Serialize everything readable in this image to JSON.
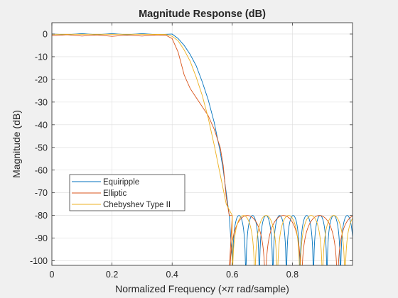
{
  "chart_data": {
    "type": "line",
    "title": "Magnitude Response (dB)",
    "xlabel_prefix": "Normalized Frequency (",
    "xlabel_pi": "×π",
    "xlabel_suffix": " rad/sample)",
    "ylabel": "Magnitude (dB)",
    "xlim": [
      0,
      1
    ],
    "ylim": [
      -102,
      5
    ],
    "xticks": [
      0,
      0.2,
      0.4,
      0.6,
      0.8
    ],
    "xtick_labels": [
      "0",
      "0.2",
      "0.4",
      "0.6",
      "0.8"
    ],
    "yticks": [
      0,
      -10,
      -20,
      -30,
      -40,
      -50,
      -60,
      -70,
      -80,
      -90,
      -100
    ],
    "ytick_labels": [
      "0",
      "-10",
      "-20",
      "-30",
      "-40",
      "-50",
      "-60",
      "-70",
      "-80",
      "-90",
      "-100"
    ],
    "grid": true,
    "legend_position": "lower-left",
    "series": [
      {
        "name": "Equiripple",
        "color": "#0072BD",
        "points": [
          [
            0,
            0
          ],
          [
            0.05,
            -0.3
          ],
          [
            0.1,
            0.2
          ],
          [
            0.15,
            -0.3
          ],
          [
            0.2,
            0.2
          ],
          [
            0.25,
            -0.3
          ],
          [
            0.3,
            0.2
          ],
          [
            0.35,
            -0.3
          ],
          [
            0.4,
            0
          ],
          [
            0.42,
            -2
          ],
          [
            0.44,
            -5
          ],
          [
            0.46,
            -9
          ],
          [
            0.48,
            -14
          ],
          [
            0.5,
            -21
          ],
          [
            0.52,
            -29
          ],
          [
            0.54,
            -39
          ],
          [
            0.56,
            -52
          ],
          [
            0.57,
            -60
          ],
          [
            0.58,
            -70
          ],
          [
            0.59,
            -80
          ],
          [
            0.6,
            -100
          ]
        ],
        "stopband": {
          "start": 0.6,
          "end": 1.0,
          "top": -80,
          "period": 0.045
        }
      },
      {
        "name": "Elliptic",
        "color": "#D95319",
        "points": [
          [
            0,
            -0.8
          ],
          [
            0.05,
            -0.3
          ],
          [
            0.1,
            -0.9
          ],
          [
            0.15,
            -0.4
          ],
          [
            0.2,
            -1.0
          ],
          [
            0.25,
            -0.5
          ],
          [
            0.3,
            -0.9
          ],
          [
            0.35,
            -0.4
          ],
          [
            0.38,
            -0.6
          ],
          [
            0.4,
            -2
          ],
          [
            0.42,
            -8
          ],
          [
            0.44,
            -18
          ],
          [
            0.46,
            -24
          ],
          [
            0.48,
            -28
          ],
          [
            0.5,
            -32
          ],
          [
            0.52,
            -36
          ],
          [
            0.54,
            -42
          ],
          [
            0.56,
            -50
          ],
          [
            0.57,
            -58
          ],
          [
            0.58,
            -72
          ],
          [
            0.59,
            -80
          ],
          [
            0.6,
            -80
          ]
        ],
        "stopband": {
          "start": 0.59,
          "end": 1.0,
          "top": -80,
          "period": 0.12
        }
      },
      {
        "name": "Chebyshev Type II",
        "color": "#EDB120",
        "points": [
          [
            0,
            -0.1
          ],
          [
            0.1,
            -0.1
          ],
          [
            0.2,
            -0.1
          ],
          [
            0.3,
            -0.1
          ],
          [
            0.38,
            -0.2
          ],
          [
            0.4,
            -1
          ],
          [
            0.42,
            -3
          ],
          [
            0.44,
            -7
          ],
          [
            0.46,
            -12
          ],
          [
            0.48,
            -19
          ],
          [
            0.5,
            -27
          ],
          [
            0.52,
            -37
          ],
          [
            0.54,
            -49
          ],
          [
            0.56,
            -62
          ],
          [
            0.58,
            -75
          ],
          [
            0.6,
            -80
          ]
        ],
        "stopband": {
          "start": 0.6,
          "end": 1.0,
          "top": -80,
          "period": 0.075
        }
      }
    ]
  }
}
